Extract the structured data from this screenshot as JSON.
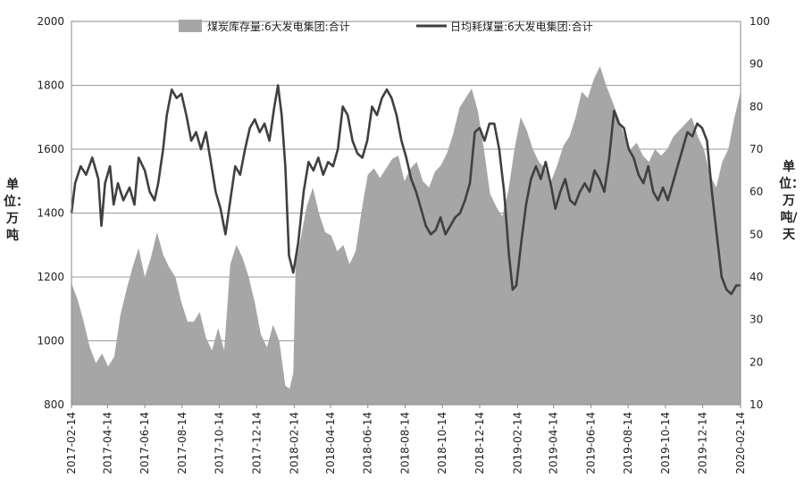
{
  "chart_data": {
    "type": "area+line",
    "series": [
      {
        "name": "煤炭库存量:6大发电集团:合计",
        "kind": "area",
        "axis": "left",
        "color": "#a6a6a6",
        "points": [
          [
            "2017-02-14",
            1180
          ],
          [
            "2017-02-24",
            1130
          ],
          [
            "2017-03-06",
            1060
          ],
          [
            "2017-03-16",
            980
          ],
          [
            "2017-03-26",
            930
          ],
          [
            "2017-04-05",
            960
          ],
          [
            "2017-04-15",
            920
          ],
          [
            "2017-04-25",
            950
          ],
          [
            "2017-05-05",
            1080
          ],
          [
            "2017-05-15",
            1160
          ],
          [
            "2017-05-25",
            1230
          ],
          [
            "2017-06-04",
            1290
          ],
          [
            "2017-06-14",
            1200
          ],
          [
            "2017-06-24",
            1260
          ],
          [
            "2017-07-04",
            1340
          ],
          [
            "2017-07-14",
            1270
          ],
          [
            "2017-07-24",
            1230
          ],
          [
            "2017-08-03",
            1200
          ],
          [
            "2017-08-13",
            1120
          ],
          [
            "2017-08-23",
            1060
          ],
          [
            "2017-09-02",
            1060
          ],
          [
            "2017-09-12",
            1090
          ],
          [
            "2017-09-22",
            1010
          ],
          [
            "2017-10-02",
            970
          ],
          [
            "2017-10-12",
            1040
          ],
          [
            "2017-10-22",
            970
          ],
          [
            "2017-11-01",
            1240
          ],
          [
            "2017-11-11",
            1300
          ],
          [
            "2017-11-21",
            1260
          ],
          [
            "2017-12-01",
            1200
          ],
          [
            "2017-12-11",
            1120
          ],
          [
            "2017-12-21",
            1020
          ],
          [
            "2017-12-31",
            980
          ],
          [
            "2018-01-10",
            1050
          ],
          [
            "2018-01-20",
            1000
          ],
          [
            "2018-01-30",
            860
          ],
          [
            "2018-02-06",
            850
          ],
          [
            "2018-02-12",
            900
          ],
          [
            "2018-02-16",
            1240
          ],
          [
            "2018-02-24",
            1320
          ],
          [
            "2018-03-06",
            1420
          ],
          [
            "2018-03-16",
            1480
          ],
          [
            "2018-03-26",
            1400
          ],
          [
            "2018-04-05",
            1340
          ],
          [
            "2018-04-15",
            1330
          ],
          [
            "2018-04-25",
            1280
          ],
          [
            "2018-05-05",
            1300
          ],
          [
            "2018-05-15",
            1240
          ],
          [
            "2018-05-25",
            1280
          ],
          [
            "2018-06-04",
            1410
          ],
          [
            "2018-06-14",
            1520
          ],
          [
            "2018-06-24",
            1540
          ],
          [
            "2018-07-04",
            1510
          ],
          [
            "2018-07-14",
            1540
          ],
          [
            "2018-07-24",
            1570
          ],
          [
            "2018-08-03",
            1580
          ],
          [
            "2018-08-13",
            1500
          ],
          [
            "2018-08-23",
            1540
          ],
          [
            "2018-09-02",
            1560
          ],
          [
            "2018-09-12",
            1500
          ],
          [
            "2018-09-22",
            1480
          ],
          [
            "2018-10-02",
            1530
          ],
          [
            "2018-10-12",
            1550
          ],
          [
            "2018-10-22",
            1590
          ],
          [
            "2018-11-01",
            1650
          ],
          [
            "2018-11-11",
            1730
          ],
          [
            "2018-11-21",
            1760
          ],
          [
            "2018-12-01",
            1790
          ],
          [
            "2018-12-11",
            1720
          ],
          [
            "2018-12-21",
            1600
          ],
          [
            "2018-12-31",
            1460
          ],
          [
            "2019-01-10",
            1420
          ],
          [
            "2019-01-20",
            1390
          ],
          [
            "2019-01-30",
            1470
          ],
          [
            "2019-02-09",
            1600
          ],
          [
            "2019-02-19",
            1700
          ],
          [
            "2019-03-01",
            1660
          ],
          [
            "2019-03-11",
            1600
          ],
          [
            "2019-03-21",
            1560
          ],
          [
            "2019-03-31",
            1540
          ],
          [
            "2019-04-10",
            1500
          ],
          [
            "2019-04-20",
            1550
          ],
          [
            "2019-04-30",
            1610
          ],
          [
            "2019-05-10",
            1640
          ],
          [
            "2019-05-20",
            1700
          ],
          [
            "2019-05-30",
            1780
          ],
          [
            "2019-06-09",
            1760
          ],
          [
            "2019-06-19",
            1820
          ],
          [
            "2019-06-29",
            1860
          ],
          [
            "2019-07-09",
            1800
          ],
          [
            "2019-07-19",
            1750
          ],
          [
            "2019-07-29",
            1700
          ],
          [
            "2019-08-08",
            1640
          ],
          [
            "2019-08-18",
            1600
          ],
          [
            "2019-08-28",
            1620
          ],
          [
            "2019-09-07",
            1580
          ],
          [
            "2019-09-17",
            1560
          ],
          [
            "2019-09-27",
            1600
          ],
          [
            "2019-10-07",
            1580
          ],
          [
            "2019-10-17",
            1600
          ],
          [
            "2019-10-27",
            1640
          ],
          [
            "2019-11-06",
            1660
          ],
          [
            "2019-11-16",
            1680
          ],
          [
            "2019-11-26",
            1700
          ],
          [
            "2019-12-06",
            1640
          ],
          [
            "2019-12-16",
            1600
          ],
          [
            "2019-12-26",
            1520
          ],
          [
            "2020-01-05",
            1480
          ],
          [
            "2020-01-15",
            1560
          ],
          [
            "2020-01-25",
            1600
          ],
          [
            "2020-02-04",
            1700
          ],
          [
            "2020-02-14",
            1780
          ]
        ]
      },
      {
        "name": "日均耗煤量:6大发电集团:合计",
        "kind": "line",
        "axis": "right",
        "color": "#404040",
        "points": [
          [
            "2017-02-14",
            55
          ],
          [
            "2017-02-20",
            62
          ],
          [
            "2017-03-01",
            66
          ],
          [
            "2017-03-10",
            64
          ],
          [
            "2017-03-20",
            68
          ],
          [
            "2017-03-30",
            63
          ],
          [
            "2017-04-04",
            52
          ],
          [
            "2017-04-10",
            62
          ],
          [
            "2017-04-18",
            66
          ],
          [
            "2017-04-24",
            57
          ],
          [
            "2017-05-01",
            62
          ],
          [
            "2017-05-10",
            58
          ],
          [
            "2017-05-20",
            61
          ],
          [
            "2017-05-28",
            57
          ],
          [
            "2017-06-04",
            68
          ],
          [
            "2017-06-14",
            65
          ],
          [
            "2017-06-22",
            60
          ],
          [
            "2017-06-30",
            58
          ],
          [
            "2017-07-06",
            62
          ],
          [
            "2017-07-14",
            70
          ],
          [
            "2017-07-20",
            78
          ],
          [
            "2017-07-28",
            84
          ],
          [
            "2017-08-05",
            82
          ],
          [
            "2017-08-13",
            83
          ],
          [
            "2017-08-21",
            78
          ],
          [
            "2017-08-29",
            72
          ],
          [
            "2017-09-06",
            74
          ],
          [
            "2017-09-14",
            70
          ],
          [
            "2017-09-22",
            74
          ],
          [
            "2017-09-30",
            67
          ],
          [
            "2017-10-08",
            60
          ],
          [
            "2017-10-16",
            56
          ],
          [
            "2017-10-24",
            50
          ],
          [
            "2017-11-01",
            58
          ],
          [
            "2017-11-09",
            66
          ],
          [
            "2017-11-17",
            64
          ],
          [
            "2017-11-25",
            70
          ],
          [
            "2017-12-03",
            75
          ],
          [
            "2017-12-11",
            77
          ],
          [
            "2017-12-19",
            74
          ],
          [
            "2017-12-27",
            76
          ],
          [
            "2018-01-04",
            72
          ],
          [
            "2018-01-12",
            80
          ],
          [
            "2018-01-18",
            85
          ],
          [
            "2018-01-24",
            78
          ],
          [
            "2018-01-30",
            66
          ],
          [
            "2018-02-05",
            45
          ],
          [
            "2018-02-12",
            41
          ],
          [
            "2018-02-20",
            48
          ],
          [
            "2018-03-01",
            60
          ],
          [
            "2018-03-09",
            67
          ],
          [
            "2018-03-17",
            65
          ],
          [
            "2018-03-25",
            68
          ],
          [
            "2018-04-02",
            64
          ],
          [
            "2018-04-10",
            67
          ],
          [
            "2018-04-18",
            66
          ],
          [
            "2018-04-26",
            70
          ],
          [
            "2018-05-04",
            80
          ],
          [
            "2018-05-12",
            78
          ],
          [
            "2018-05-20",
            72
          ],
          [
            "2018-05-28",
            69
          ],
          [
            "2018-06-05",
            68
          ],
          [
            "2018-06-13",
            72
          ],
          [
            "2018-06-21",
            80
          ],
          [
            "2018-06-29",
            78
          ],
          [
            "2018-07-07",
            82
          ],
          [
            "2018-07-15",
            84
          ],
          [
            "2018-07-23",
            82
          ],
          [
            "2018-07-31",
            78
          ],
          [
            "2018-08-08",
            72
          ],
          [
            "2018-08-16",
            68
          ],
          [
            "2018-08-24",
            63
          ],
          [
            "2018-09-01",
            60
          ],
          [
            "2018-09-09",
            56
          ],
          [
            "2018-09-17",
            52
          ],
          [
            "2018-09-25",
            50
          ],
          [
            "2018-10-03",
            51
          ],
          [
            "2018-10-11",
            54
          ],
          [
            "2018-10-19",
            50
          ],
          [
            "2018-10-27",
            52
          ],
          [
            "2018-11-04",
            54
          ],
          [
            "2018-11-12",
            55
          ],
          [
            "2018-11-20",
            58
          ],
          [
            "2018-11-28",
            62
          ],
          [
            "2018-12-06",
            74
          ],
          [
            "2018-12-14",
            75
          ],
          [
            "2018-12-22",
            72
          ],
          [
            "2018-12-30",
            76
          ],
          [
            "2019-01-07",
            76
          ],
          [
            "2019-01-15",
            70
          ],
          [
            "2019-01-23",
            60
          ],
          [
            "2019-01-31",
            45
          ],
          [
            "2019-02-06",
            37
          ],
          [
            "2019-02-12",
            38
          ],
          [
            "2019-02-20",
            48
          ],
          [
            "2019-02-28",
            57
          ],
          [
            "2019-03-08",
            63
          ],
          [
            "2019-03-16",
            66
          ],
          [
            "2019-03-24",
            63
          ],
          [
            "2019-04-01",
            67
          ],
          [
            "2019-04-09",
            62
          ],
          [
            "2019-04-17",
            56
          ],
          [
            "2019-04-25",
            60
          ],
          [
            "2019-05-03",
            63
          ],
          [
            "2019-05-11",
            58
          ],
          [
            "2019-05-19",
            57
          ],
          [
            "2019-05-27",
            60
          ],
          [
            "2019-06-04",
            62
          ],
          [
            "2019-06-12",
            60
          ],
          [
            "2019-06-20",
            65
          ],
          [
            "2019-06-28",
            63
          ],
          [
            "2019-07-06",
            60
          ],
          [
            "2019-07-14",
            68
          ],
          [
            "2019-07-22",
            79
          ],
          [
            "2019-07-30",
            76
          ],
          [
            "2019-08-07",
            75
          ],
          [
            "2019-08-15",
            70
          ],
          [
            "2019-08-23",
            68
          ],
          [
            "2019-08-31",
            64
          ],
          [
            "2019-09-08",
            62
          ],
          [
            "2019-09-16",
            66
          ],
          [
            "2019-09-24",
            60
          ],
          [
            "2019-10-02",
            58
          ],
          [
            "2019-10-10",
            61
          ],
          [
            "2019-10-18",
            58
          ],
          [
            "2019-10-26",
            62
          ],
          [
            "2019-11-03",
            66
          ],
          [
            "2019-11-11",
            70
          ],
          [
            "2019-11-19",
            74
          ],
          [
            "2019-11-27",
            73
          ],
          [
            "2019-12-05",
            76
          ],
          [
            "2019-12-13",
            75
          ],
          [
            "2019-12-21",
            72
          ],
          [
            "2019-12-29",
            60
          ],
          [
            "2020-01-06",
            50
          ],
          [
            "2020-01-14",
            40
          ],
          [
            "2020-01-22",
            37
          ],
          [
            "2020-01-30",
            36
          ],
          [
            "2020-02-07",
            38
          ],
          [
            "2020-02-14",
            38
          ]
        ]
      }
    ],
    "yleft": {
      "label": "单位：万吨",
      "range": [
        800,
        2000
      ],
      "ticks": [
        "800",
        "1000",
        "1200",
        "1400",
        "1600",
        "1800",
        "2000"
      ]
    },
    "yright": {
      "label": "单位：万吨/天",
      "range": [
        10,
        100
      ],
      "ticks": [
        "10",
        "20",
        "30",
        "40",
        "50",
        "60",
        "70",
        "80",
        "90",
        "100"
      ]
    },
    "x": {
      "range": [
        "2017-02-14",
        "2020-02-14"
      ],
      "ticks": [
        "2017-02-14",
        "2017-04-14",
        "2017-06-14",
        "2017-08-14",
        "2017-10-14",
        "2017-12-14",
        "2018-02-14",
        "2018-04-14",
        "2018-06-14",
        "2018-08-14",
        "2018-10-14",
        "2018-12-14",
        "2019-02-14",
        "2019-04-14",
        "2019-06-14",
        "2019-08-14",
        "2019-10-14",
        "2019-12-14",
        "2020-02-14"
      ]
    },
    "grid": "horizontal",
    "legend": "top"
  }
}
